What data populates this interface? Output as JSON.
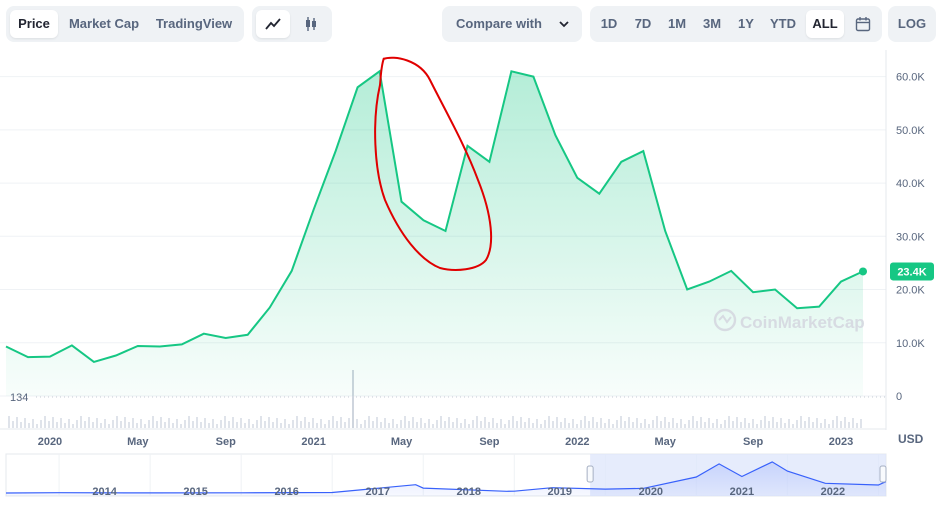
{
  "toolbar": {
    "view_tabs": [
      "Price",
      "Market Cap",
      "TradingView"
    ],
    "active_view": "Price",
    "compare_label": "Compare with",
    "ranges": [
      "1D",
      "7D",
      "1M",
      "3M",
      "1Y",
      "YTD",
      "ALL"
    ],
    "active_range": "ALL",
    "log_label": "LOG",
    "icons": {
      "line": "line-chart-icon",
      "candle": "candlestick-icon",
      "calendar": "calendar-icon",
      "chevron": "chevron-down-icon"
    }
  },
  "colors": {
    "line": "#16c784",
    "area_top": "#c9f0dd",
    "annotation": "#e00000",
    "navigator_fill": "#dde6fb",
    "navigator_line": "#3861fb"
  },
  "watermark": "CoinMarketCap",
  "currency": "USD",
  "chart_data": [
    {
      "type": "area",
      "x": [
        "2019-11",
        "2019-12",
        "2020-01",
        "2020-02",
        "2020-03",
        "2020-04",
        "2020-05",
        "2020-06",
        "2020-07",
        "2020-08",
        "2020-09",
        "2020-10",
        "2020-11",
        "2020-12",
        "2021-01",
        "2021-02",
        "2021-03",
        "2021-04",
        "2021-05",
        "2021-06",
        "2021-07",
        "2021-08",
        "2021-09",
        "2021-10",
        "2021-11",
        "2021-12",
        "2022-01",
        "2022-02",
        "2022-03",
        "2022-04",
        "2022-05",
        "2022-06",
        "2022-07",
        "2022-08",
        "2022-09",
        "2022-10",
        "2022-11",
        "2022-12",
        "2023-01",
        "2023-02"
      ],
      "series": [
        {
          "values": [
            9300,
            7300,
            7400,
            9500,
            6400,
            7600,
            9400,
            9300,
            9700,
            11700,
            10900,
            11500,
            16600,
            23500,
            35000,
            46000,
            58000,
            61000,
            36500,
            33000,
            31000,
            47000,
            44000,
            61000,
            60000,
            49000,
            41000,
            38000,
            44000,
            46000,
            31000,
            20000,
            21500,
            23500,
            19500,
            20000,
            16500,
            16800,
            21500,
            23400
          ]
        }
      ],
      "xticks": [
        "2020",
        "May",
        "Sep",
        "2021",
        "May",
        "Sep",
        "2022",
        "May",
        "Sep",
        "2023"
      ],
      "yticks": [
        "60.0K",
        "50.0K",
        "40.0K",
        "30.0K",
        "20.0K",
        "10.0K",
        "0"
      ],
      "ylim": [
        0,
        65000
      ],
      "current_label": "23.4K",
      "volume_label": "134",
      "grid": true
    },
    {
      "type": "area",
      "x": [
        "2013-06",
        "2014",
        "2015",
        "2016",
        "2017",
        "2017-12",
        "2018",
        "2018-12",
        "2019",
        "2019-06",
        "2020",
        "2020-06",
        "2021",
        "2021-04",
        "2021-07",
        "2021-11",
        "2022",
        "2022-06",
        "2023",
        "2023-02"
      ],
      "series": [
        {
          "values": [
            100,
            600,
            250,
            400,
            1000,
            17000,
            10000,
            3500,
            3800,
            11000,
            8000,
            9500,
            33000,
            60000,
            34000,
            64000,
            45000,
            20000,
            16500,
            23400
          ]
        }
      ],
      "xticks": [
        "2014",
        "2015",
        "2016",
        "2017",
        "2018",
        "2019",
        "2020",
        "2021",
        "2022"
      ]
    }
  ]
}
